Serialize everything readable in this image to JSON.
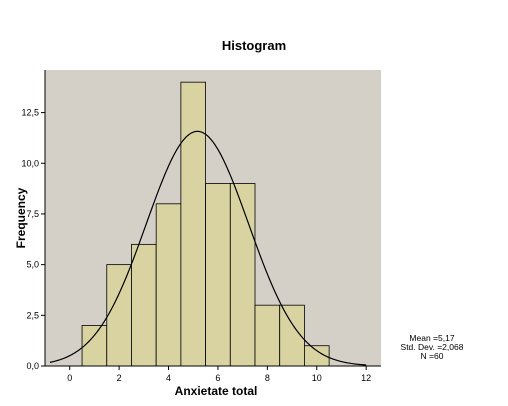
{
  "chart_data": {
    "type": "bar",
    "title": "Histogram",
    "xlabel": "Anxietate total",
    "ylabel": "Frequency",
    "xlim": [
      -1,
      12.6
    ],
    "ylim": [
      0,
      14.6
    ],
    "x_ticks": [
      0,
      2,
      4,
      6,
      8,
      10,
      12
    ],
    "x_tick_labels": [
      "0",
      "2",
      "4",
      "6",
      "8",
      "10",
      "12"
    ],
    "y_ticks": [
      0,
      2.5,
      5,
      7.5,
      10,
      12.5
    ],
    "y_tick_labels": [
      "0,0",
      "2,5",
      "5,0",
      "7,5",
      "10,0",
      "12,5"
    ],
    "bins": [
      {
        "x0": 0.5,
        "x1": 1.5,
        "count": 2
      },
      {
        "x0": 1.5,
        "x1": 2.5,
        "count": 5
      },
      {
        "x0": 2.5,
        "x1": 3.5,
        "count": 6
      },
      {
        "x0": 3.5,
        "x1": 4.5,
        "count": 8
      },
      {
        "x0": 4.5,
        "x1": 5.5,
        "count": 14
      },
      {
        "x0": 5.5,
        "x1": 6.5,
        "count": 9
      },
      {
        "x0": 6.5,
        "x1": 7.5,
        "count": 9
      },
      {
        "x0": 7.5,
        "x1": 8.5,
        "count": 3
      },
      {
        "x0": 8.5,
        "x1": 9.5,
        "count": 3
      },
      {
        "x0": 9.5,
        "x1": 10.5,
        "count": 1
      }
    ],
    "normal_curve": {
      "mean": 5.17,
      "std_dev": 2.068,
      "n": 60,
      "bin_width": 1
    },
    "stats_text": [
      "Mean =5,17",
      "Std. Dev. =2,068",
      "N =60"
    ],
    "colors": {
      "plot_bg": "#d4d0c8",
      "bar_fill": "#d8d3a1",
      "bar_stroke": "#000000",
      "curve": "#000000"
    }
  }
}
